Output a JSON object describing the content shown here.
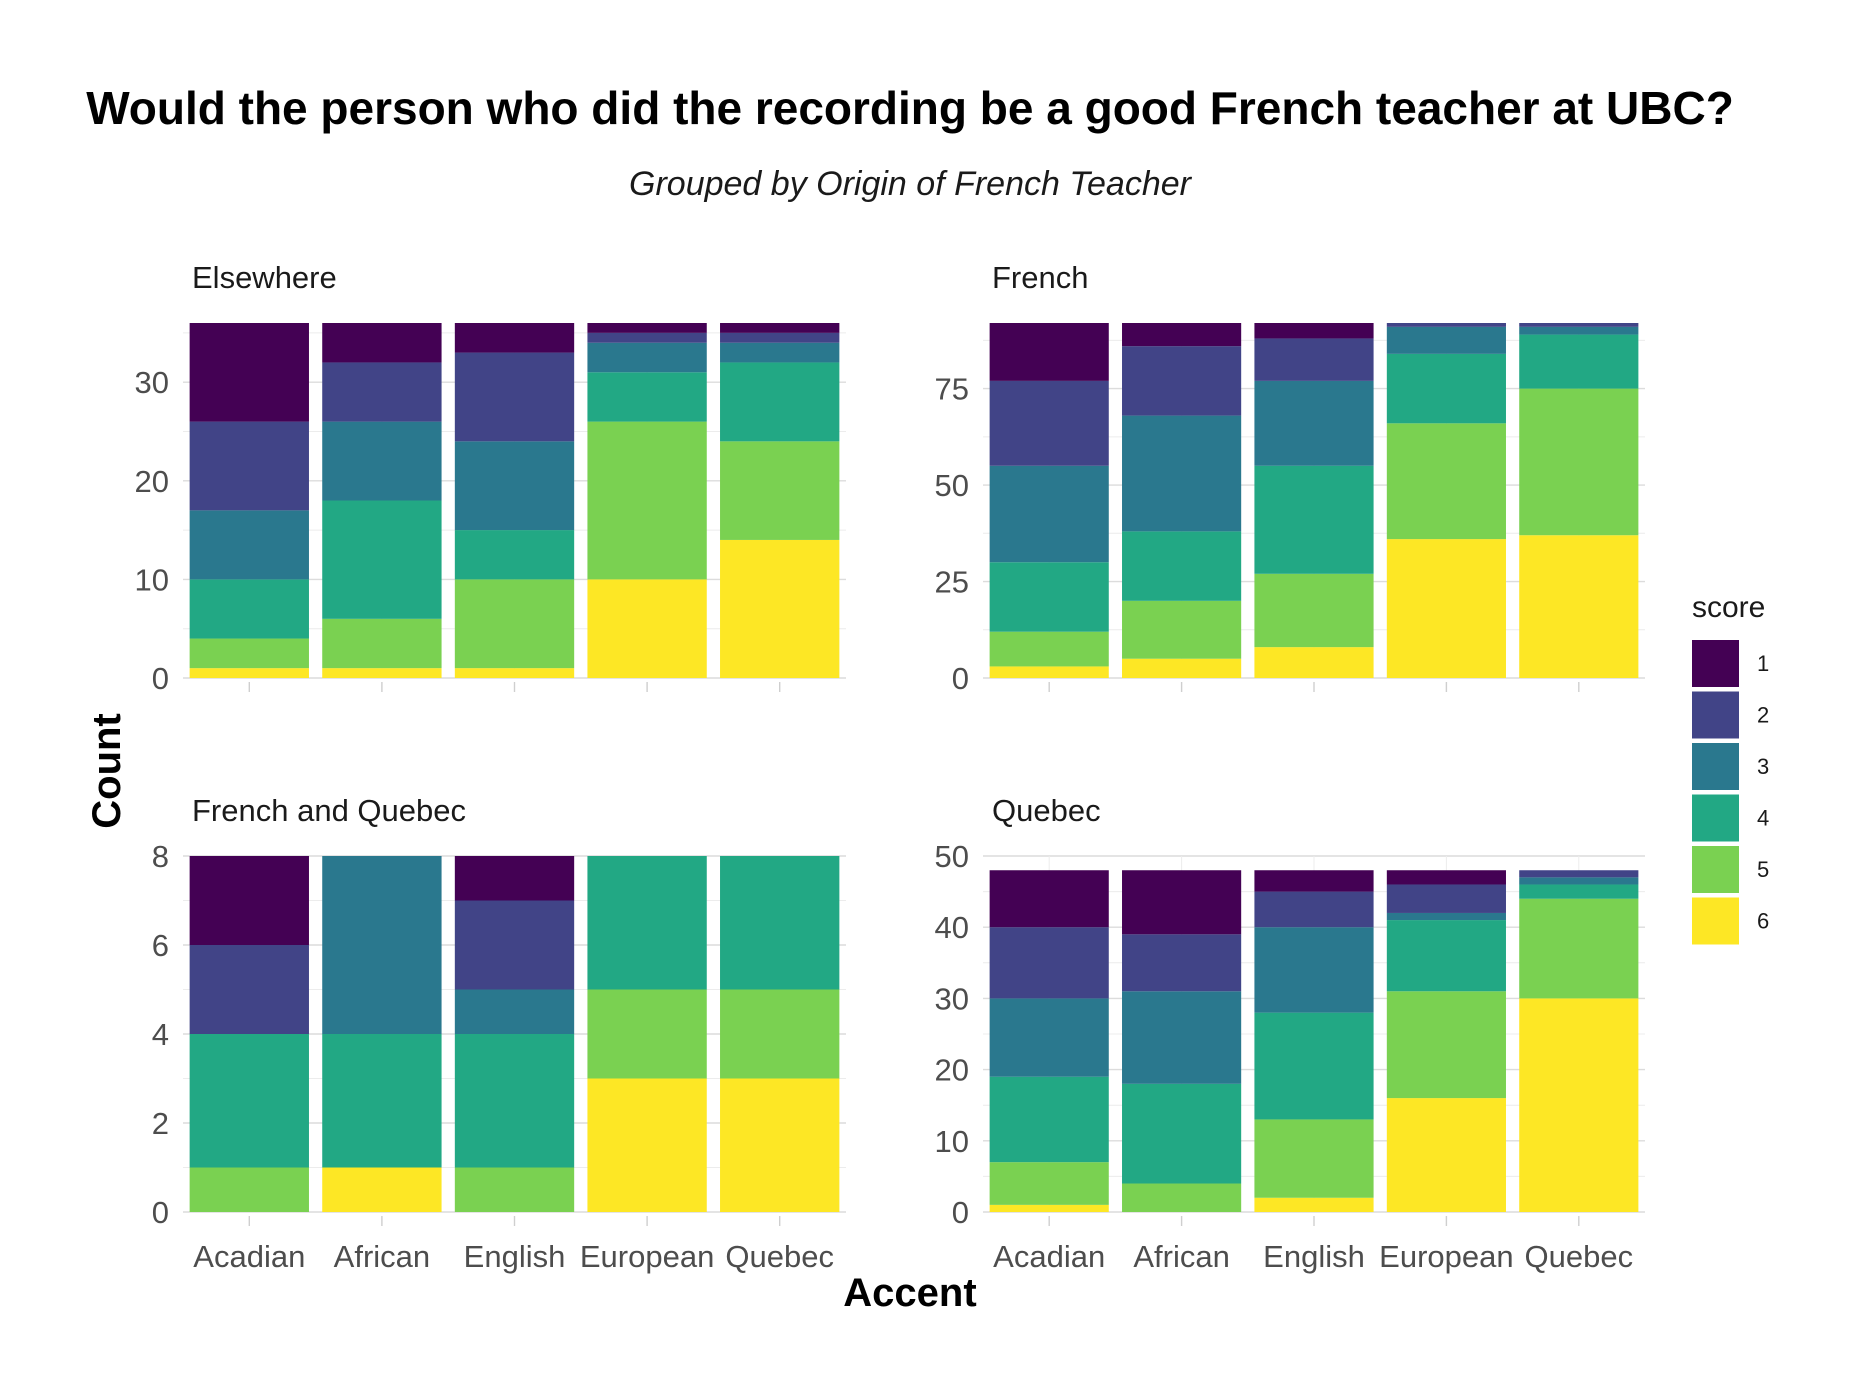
{
  "chart_data": {
    "type": "bar",
    "stacked": true,
    "title": "Would the person who did the recording be a good French teacher at UBC?",
    "subtitle": "Grouped by Origin of French Teacher",
    "xlabel": "Accent",
    "ylabel": "Count",
    "categories": [
      "Acadian",
      "African",
      "English",
      "European",
      "Quebec"
    ],
    "legend": {
      "title": "score",
      "placement": "right",
      "items": [
        {
          "label": "1",
          "color": "#440154"
        },
        {
          "label": "2",
          "color": "#414487"
        },
        {
          "label": "3",
          "color": "#2A788E"
        },
        {
          "label": "4",
          "color": "#22A884"
        },
        {
          "label": "5",
          "color": "#7AD151"
        },
        {
          "label": "6",
          "color": "#FDE725"
        }
      ]
    },
    "grid": true,
    "panels": [
      {
        "name": "Elsewhere",
        "ylim": [
          0,
          36
        ],
        "yticks": [
          "0",
          "10",
          "20",
          "30"
        ],
        "show_x_labels": false,
        "series": [
          {
            "score": "6",
            "values": [
              1,
              1,
              1,
              10,
              14
            ]
          },
          {
            "score": "5",
            "values": [
              3,
              5,
              9,
              16,
              10
            ]
          },
          {
            "score": "4",
            "values": [
              6,
              12,
              5,
              5,
              8
            ]
          },
          {
            "score": "3",
            "values": [
              7,
              8,
              9,
              3,
              2
            ]
          },
          {
            "score": "2",
            "values": [
              9,
              6,
              9,
              1,
              1
            ]
          },
          {
            "score": "1",
            "values": [
              10,
              4,
              3,
              1,
              1
            ]
          }
        ]
      },
      {
        "name": "French",
        "ylim": [
          0,
          92
        ],
        "yticks": [
          "0",
          "25",
          "50",
          "75"
        ],
        "show_x_labels": false,
        "series": [
          {
            "score": "6",
            "values": [
              3,
              5,
              8,
              36,
              37
            ]
          },
          {
            "score": "5",
            "values": [
              9,
              15,
              19,
              30,
              38
            ]
          },
          {
            "score": "4",
            "values": [
              18,
              18,
              28,
              18,
              14
            ]
          },
          {
            "score": "3",
            "values": [
              25,
              30,
              22,
              7,
              2
            ]
          },
          {
            "score": "2",
            "values": [
              22,
              18,
              11,
              1,
              1
            ]
          },
          {
            "score": "1",
            "values": [
              15,
              6,
              4,
              0,
              0
            ]
          }
        ]
      },
      {
        "name": "French and Quebec",
        "ylim": [
          0,
          8
        ],
        "yticks": [
          "0",
          "2",
          "4",
          "6",
          "8"
        ],
        "show_x_labels": true,
        "series": [
          {
            "score": "6",
            "values": [
              0,
              1,
              0,
              3,
              3
            ]
          },
          {
            "score": "5",
            "values": [
              1,
              0,
              1,
              2,
              2
            ]
          },
          {
            "score": "4",
            "values": [
              3,
              3,
              3,
              3,
              3
            ]
          },
          {
            "score": "3",
            "values": [
              0,
              4,
              1,
              0,
              0
            ]
          },
          {
            "score": "2",
            "values": [
              2,
              0,
              2,
              0,
              0
            ]
          },
          {
            "score": "1",
            "values": [
              2,
              0,
              1,
              0,
              0
            ]
          }
        ]
      },
      {
        "name": "Quebec",
        "ylim": [
          0,
          50
        ],
        "yticks": [
          "0",
          "10",
          "20",
          "30",
          "40",
          "50"
        ],
        "show_x_labels": true,
        "series": [
          {
            "score": "6",
            "values": [
              1,
              0,
              2,
              16,
              30
            ]
          },
          {
            "score": "5",
            "values": [
              6,
              4,
              11,
              15,
              14
            ]
          },
          {
            "score": "4",
            "values": [
              12,
              14,
              15,
              10,
              2
            ]
          },
          {
            "score": "3",
            "values": [
              11,
              13,
              12,
              1,
              1
            ]
          },
          {
            "score": "2",
            "values": [
              10,
              8,
              5,
              4,
              1
            ]
          },
          {
            "score": "1",
            "values": [
              8,
              9,
              3,
              2,
              0
            ]
          }
        ]
      }
    ]
  }
}
